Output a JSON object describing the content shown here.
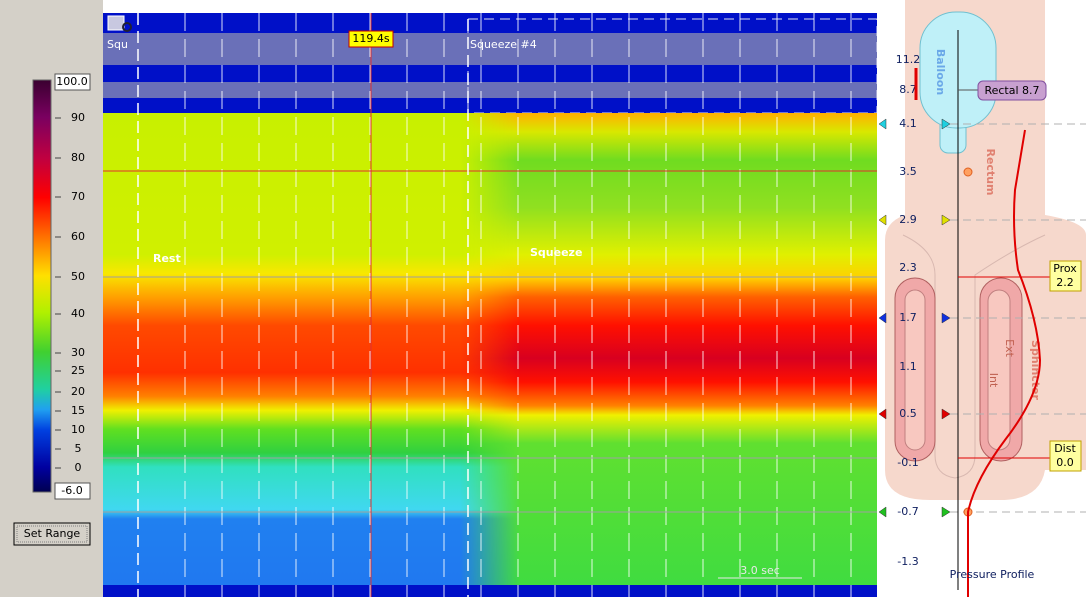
{
  "scale": {
    "max": "100.0",
    "min": "-6.0",
    "ticks": [
      90,
      80,
      70,
      60,
      50,
      40,
      30,
      25,
      20,
      15,
      10,
      5,
      0
    ],
    "button": "Set Range"
  },
  "plot": {
    "event_short": "Squ",
    "cursor_time": "119.4s",
    "event": "Squeeze #4",
    "labels": [
      "Rest",
      "Squeeze"
    ],
    "scale_bar": "3.0 sec"
  },
  "profile": {
    "positions": [
      11.2,
      8.7,
      4.1,
      3.5,
      2.9,
      2.3,
      1.7,
      1.1,
      0.5,
      -0.1,
      -0.7,
      -1.3
    ],
    "balloon": "Balloon",
    "rectal": "Rectal 8.7",
    "rectum": "Rectum",
    "prox": {
      "label": "Prox",
      "value": 2.2
    },
    "sphincter": "Sphincter",
    "ext": "Ext",
    "int": "Int",
    "dist": {
      "label": "Dist",
      "value": "0.0"
    },
    "title": "Pressure Profile"
  }
}
